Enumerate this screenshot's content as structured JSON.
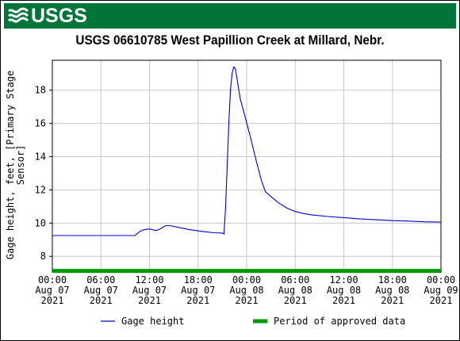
{
  "header": {
    "logo_text": "USGS",
    "brand_color": "#00753a"
  },
  "chart_data": {
    "type": "line",
    "title": "USGS 06610785 West Papillion Creek at Millard, Nebr.",
    "ylabel_lines": [
      "Gage height, feet, [Primary Stage",
      "Sensor]"
    ],
    "ylim": [
      7.2,
      19.8
    ],
    "yticks": [
      8,
      10,
      12,
      14,
      16,
      18
    ],
    "xlim_hours": [
      0,
      48
    ],
    "xticks": [
      {
        "time": "00:00",
        "date": "Aug 07",
        "year": "2021"
      },
      {
        "time": "06:00",
        "date": "Aug 07",
        "year": "2021"
      },
      {
        "time": "12:00",
        "date": "Aug 07",
        "year": "2021"
      },
      {
        "time": "18:00",
        "date": "Aug 07",
        "year": "2021"
      },
      {
        "time": "00:00",
        "date": "Aug 08",
        "year": "2021"
      },
      {
        "time": "06:00",
        "date": "Aug 08",
        "year": "2021"
      },
      {
        "time": "12:00",
        "date": "Aug 08",
        "year": "2021"
      },
      {
        "time": "18:00",
        "date": "Aug 08",
        "year": "2021"
      },
      {
        "time": "00:00",
        "date": "Aug 09",
        "year": "2021"
      }
    ],
    "grid": true,
    "series": [
      {
        "name": "Gage height",
        "color": "#0000cc",
        "points": [
          [
            0,
            9.25
          ],
          [
            4,
            9.25
          ],
          [
            8,
            9.25
          ],
          [
            10.2,
            9.25
          ],
          [
            10.8,
            9.5
          ],
          [
            11.3,
            9.6
          ],
          [
            12,
            9.65
          ],
          [
            12.8,
            9.55
          ],
          [
            13.3,
            9.65
          ],
          [
            14,
            9.85
          ],
          [
            14.5,
            9.85
          ],
          [
            15.5,
            9.75
          ],
          [
            17,
            9.6
          ],
          [
            18.5,
            9.5
          ],
          [
            20,
            9.42
          ],
          [
            21,
            9.4
          ],
          [
            21.2,
            9.35
          ],
          [
            21.4,
            11.0
          ],
          [
            21.6,
            13.5
          ],
          [
            21.8,
            16.0
          ],
          [
            22.0,
            18.0
          ],
          [
            22.2,
            19.0
          ],
          [
            22.4,
            19.4
          ],
          [
            22.6,
            19.3
          ],
          [
            22.8,
            18.7
          ],
          [
            23.2,
            17.5
          ],
          [
            23.8,
            16.4
          ],
          [
            24.5,
            15.1
          ],
          [
            25.2,
            13.7
          ],
          [
            25.8,
            12.6
          ],
          [
            26.3,
            11.9
          ],
          [
            27,
            11.6
          ],
          [
            28,
            11.2
          ],
          [
            29,
            10.9
          ],
          [
            30,
            10.7
          ],
          [
            31,
            10.58
          ],
          [
            32,
            10.5
          ],
          [
            34,
            10.4
          ],
          [
            36,
            10.33
          ],
          [
            38,
            10.25
          ],
          [
            40,
            10.2
          ],
          [
            42,
            10.15
          ],
          [
            44,
            10.12
          ],
          [
            46,
            10.08
          ],
          [
            48,
            10.06
          ]
        ]
      },
      {
        "name": "Period of approved data",
        "color": "#009900",
        "start_hour": 0,
        "end_hour": 48,
        "level": 7.12
      }
    ],
    "legend_placement": "bottom"
  }
}
